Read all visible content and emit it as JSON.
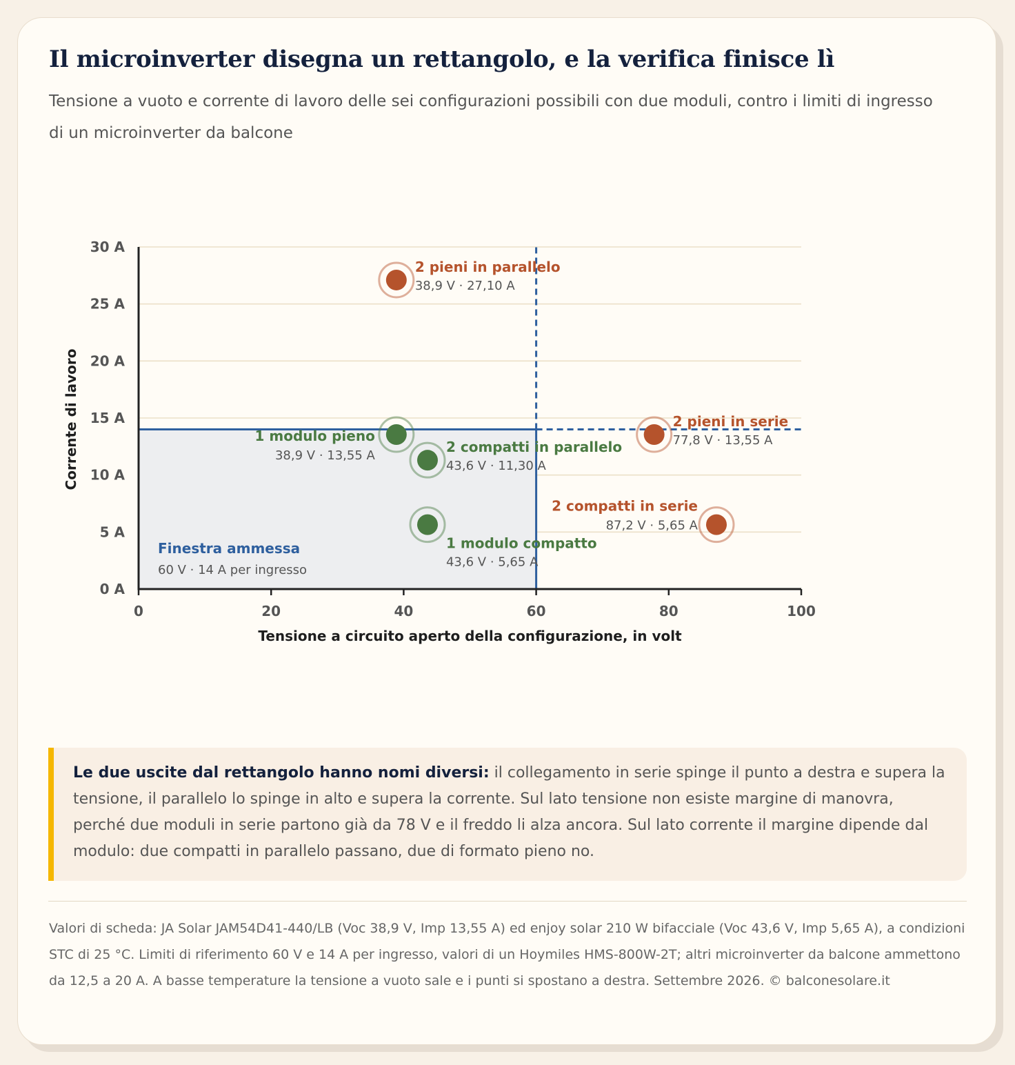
{
  "title": "Il microinverter disegna un rettangolo, e la verifica finisce lì",
  "subtitle": "Tensione a vuoto e corrente di lavoro delle sei configurazioni possibili con due moduli, contro i limiti di ingresso di un microinverter da balcone",
  "chart_data": {
    "type": "scatter",
    "xlabel": "Tensione a circuito aperto della configurazione, in volt",
    "ylabel": "Corrente di lavoro",
    "xlim": [
      0,
      100
    ],
    "ylim": [
      0,
      30
    ],
    "x_ticks": [
      0,
      20,
      40,
      60,
      80,
      100
    ],
    "x_tick_labels": [
      "0",
      "20",
      "40",
      "60",
      "80",
      "100"
    ],
    "y_ticks": [
      0,
      5,
      10,
      15,
      20,
      25,
      30
    ],
    "y_tick_labels": [
      "0 A",
      "5 A",
      "10 A",
      "15 A",
      "20 A",
      "25 A",
      "30 A"
    ],
    "grid": "horizontal",
    "limits": {
      "voltage": 60,
      "current": 14
    },
    "window": {
      "label": "Finestra ammessa",
      "sublabel": "60 V · 14 A per ingresso"
    },
    "colors": {
      "ok": "#4a7a42",
      "out": "#b5532c",
      "limit": "#2e5f9e",
      "window_fill": "#edeef0",
      "grid": "#ece0c8"
    },
    "points": [
      {
        "name": "2 pieni in parallelo",
        "value_label": "38,9 V · 27,10 A",
        "x": 38.9,
        "y": 27.1,
        "status": "out",
        "label_side": "right"
      },
      {
        "name": "1 modulo pieno",
        "value_label": "38,9 V · 13,55 A",
        "x": 38.9,
        "y": 13.55,
        "status": "ok",
        "label_side": "left"
      },
      {
        "name": "2 compatti in parallelo",
        "value_label": "43,6 V · 11,30 A",
        "x": 43.6,
        "y": 11.3,
        "status": "ok",
        "label_side": "right"
      },
      {
        "name": "1 modulo compatto",
        "value_label": "43,6 V · 5,65 A",
        "x": 43.6,
        "y": 5.65,
        "status": "ok",
        "label_side": "below-right"
      },
      {
        "name": "2 pieni in serie",
        "value_label": "77,8 V · 13,55 A",
        "x": 77.8,
        "y": 13.55,
        "status": "out",
        "label_side": "right"
      },
      {
        "name": "2 compatti in serie",
        "value_label": "87,2 V · 5,65 A",
        "x": 87.2,
        "y": 5.65,
        "status": "out",
        "label_side": "above-left"
      }
    ]
  },
  "note": {
    "lead": "Le due uscite dal rettangolo hanno nomi diversi:",
    "text": " il collegamento in serie spinge il punto a destra e supera la tensione, il parallelo lo spinge in alto e supera la corrente. Sul lato tensione non esiste margine di manovra, perché due moduli in serie partono già da 78 V e il freddo li alza ancora. Sul lato corrente il margine dipende dal modulo: due compatti in parallelo passano, due di formato pieno no."
  },
  "footer": "Valori di scheda: JA Solar JAM54D41-440/LB (Voc 38,9 V, Imp 13,55 A) ed enjoy solar 210 W bifacciale (Voc 43,6 V, Imp 5,65 A), a condizioni STC di 25 °C. Limiti di riferimento 60 V e 14 A per ingresso, valori di un Hoymiles HMS-800W-2T; altri microinverter da balcone ammettono da 12,5 a 20 A. A basse temperature la tensione a vuoto sale e i punti si spostano a destra. Settembre 2026. © balconesolare.it"
}
